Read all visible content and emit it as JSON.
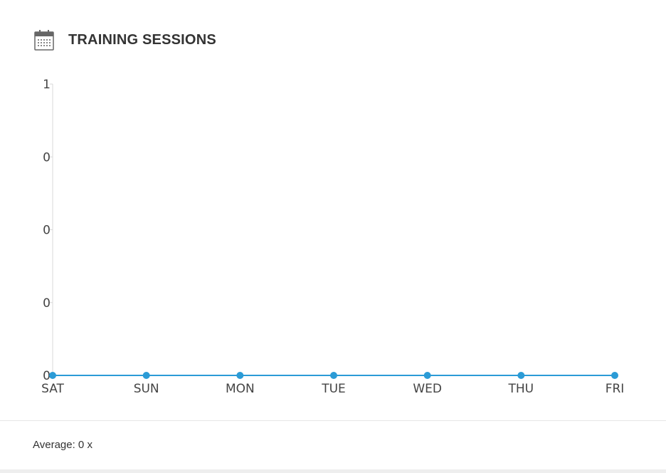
{
  "header": {
    "title": "TRAINING SESSIONS",
    "icon": "calendar-icon"
  },
  "chart_data": {
    "type": "line",
    "title": "",
    "xlabel": "",
    "ylabel": "",
    "categories": [
      "SAT",
      "SUN",
      "MON",
      "TUE",
      "WED",
      "THU",
      "FRI"
    ],
    "series": [
      {
        "values": [
          0,
          0,
          0,
          0,
          0,
          0,
          0
        ]
      }
    ],
    "y_tick_labels": [
      "1",
      "0",
      "0",
      "0",
      "0"
    ],
    "ylim": [
      0,
      1
    ],
    "grid": false,
    "legend": "none",
    "color": "#2b9bd6"
  },
  "footer": {
    "average_label": "Average: 0 x"
  }
}
